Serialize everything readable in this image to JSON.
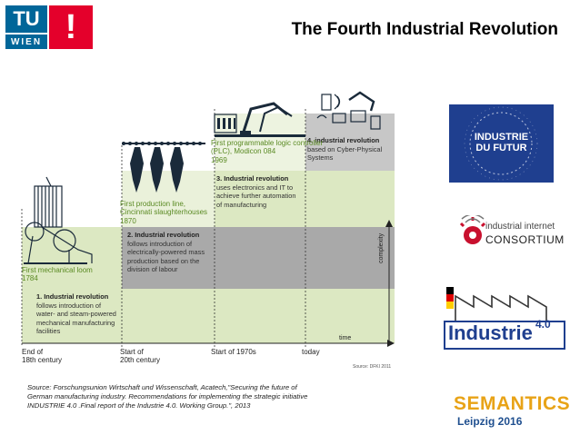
{
  "header": {
    "logo_top": "TU",
    "logo_bottom": "WIEN",
    "logo_mark": "!",
    "title": "The Fourth Industrial Revolution"
  },
  "diagram": {
    "stages": [
      {
        "lines": [
          "1. Industrial revolution",
          "follows introduction of",
          "water- and steam-powered",
          "mechanical manufacturing",
          "facilities"
        ]
      },
      {
        "lines": [
          "2. Industrial revolution",
          "follows introduction of",
          "electrically-powered mass",
          "production based on the",
          "division of labour"
        ]
      },
      {
        "lines": [
          "3. Industrial revolution",
          "uses electronics and IT to",
          "achieve further automation",
          "of manufacturing"
        ]
      },
      {
        "lines": [
          "4. industrial revolution",
          "based on Cyber-Physical",
          "Systems"
        ]
      }
    ],
    "events": [
      {
        "lines": [
          "First mechanical loom",
          "1784"
        ]
      },
      {
        "lines": [
          "First production line,",
          "Cincinnati slaughterhouses",
          "1870"
        ]
      },
      {
        "lines": [
          "First programmable logic controller",
          "(PLC), Modicon 084",
          "1969"
        ]
      }
    ],
    "timeline": [
      {
        "lines": [
          "End of",
          "18th century"
        ]
      },
      {
        "lines": [
          "Start of",
          "20th century"
        ]
      },
      {
        "lines": [
          "Start of 1970s"
        ]
      },
      {
        "lines": [
          "today"
        ]
      }
    ],
    "axis_complexity": "complexity",
    "axis_time": "time",
    "credit": "Source: DFKI 2011",
    "colors": {
      "light_green": "#dce8c2",
      "dark_gray": "#a9a9a9",
      "mid_gray": "#c7c7c7",
      "green_text": "#5a8a23"
    }
  },
  "source": {
    "line1": "Source: Forschungsunion Wirtschaft und Wissenschaft, Acatech,\"Securing the future of",
    "line2": "German manufacturing industry. Recommendations for implementing the strategic initiative",
    "line3": "INDUSTRIE 4.0 .Final report of the Industrie 4.0. Working Group.\", 2013"
  },
  "logos": {
    "futur": [
      "INDUSTRIE",
      "DU FUTUR"
    ],
    "iic": [
      "industrial internet",
      "CONSORTIUM"
    ],
    "i40_word": "Industrie",
    "i40_sup": "4.0",
    "semantics_word": "SEMANTICS",
    "semantics_sub": "Leipzig 2016"
  }
}
